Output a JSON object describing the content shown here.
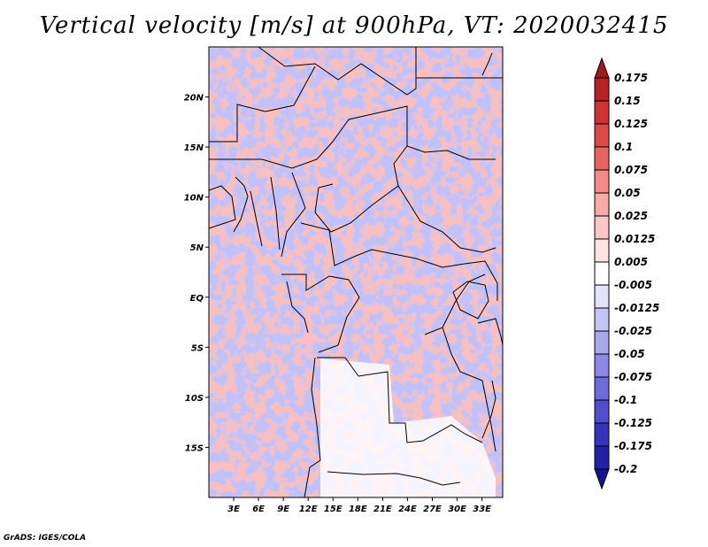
{
  "title": "Vertical velocity [m/s] at 900hPa, VT: 2020032415",
  "credit": "GrADS: IGES/COLA",
  "map": {
    "lon_range": [
      0,
      35.5
    ],
    "lat_range": [
      -20,
      25
    ],
    "lat_ticks": [
      {
        "value": 20,
        "label": "20N"
      },
      {
        "value": 15,
        "label": "15N"
      },
      {
        "value": 10,
        "label": "10N"
      },
      {
        "value": 5,
        "label": "5N"
      },
      {
        "value": 0,
        "label": "EQ"
      },
      {
        "value": -5,
        "label": "5S"
      },
      {
        "value": -10,
        "label": "10S"
      },
      {
        "value": -15,
        "label": "15S"
      }
    ],
    "lon_ticks": [
      {
        "value": 3,
        "label": "3E"
      },
      {
        "value": 6,
        "label": "6E"
      },
      {
        "value": 9,
        "label": "9E"
      },
      {
        "value": 12,
        "label": "12E"
      },
      {
        "value": 15,
        "label": "15E"
      },
      {
        "value": 18,
        "label": "18E"
      },
      {
        "value": 21,
        "label": "21E"
      },
      {
        "value": 24,
        "label": "24E"
      },
      {
        "value": 27,
        "label": "27E"
      },
      {
        "value": 30,
        "label": "30E"
      },
      {
        "value": 33,
        "label": "33E"
      }
    ],
    "field_colors": {
      "up": "#e8504a",
      "down": "#5a5ee0",
      "neutral": "#ffffff"
    }
  },
  "colorbar": {
    "labels": [
      "0.175",
      "0.15",
      "0.125",
      "0.1",
      "0.075",
      "0.05",
      "0.025",
      "0.0125",
      "0.005",
      "-0.005",
      "-0.0125",
      "-0.025",
      "-0.05",
      "-0.075",
      "-0.1",
      "-0.125",
      "-0.175",
      "-0.2"
    ],
    "colors": [
      "#a01818",
      "#b82222",
      "#cf3333",
      "#e04848",
      "#ea6464",
      "#f28a86",
      "#f7aaa6",
      "#fac8c4",
      "#fde4e2",
      "#ffffff",
      "#e2e2fa",
      "#c6c6f4",
      "#a8a8ee",
      "#8a8ae6",
      "#6c6cdc",
      "#4e4ece",
      "#3434bc",
      "#2222a8",
      "#12129a"
    ]
  }
}
